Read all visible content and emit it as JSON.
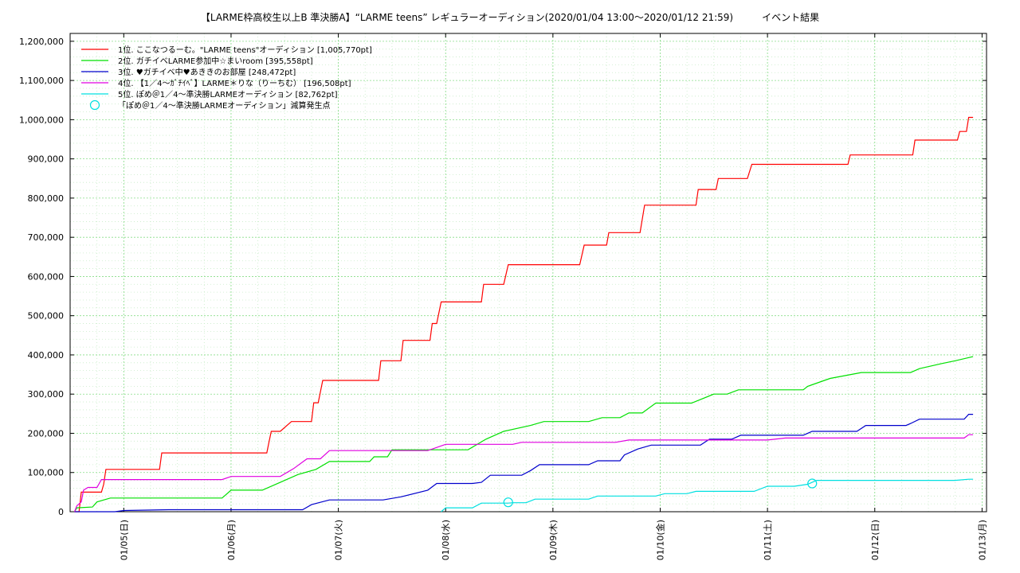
{
  "chart_data": {
    "type": "line",
    "title": "【LARME枠高校生以上B 準決勝A】“LARME teens” レギュラーオーディション(2020/01/04 13:00〜2020/01/12 21:59)　　　イベント結果",
    "xlabel": "",
    "ylabel": "",
    "x_range": [
      "2020-01-04 12:00",
      "2020-01-13 01:00"
    ],
    "ylim": [
      0,
      1220000
    ],
    "grid": true,
    "legend_position": "top-left",
    "y_ticks": [
      0,
      100000,
      200000,
      300000,
      400000,
      500000,
      600000,
      700000,
      800000,
      900000,
      1000000,
      1100000,
      1200000
    ],
    "y_tick_labels": [
      "0",
      "100,000",
      "200,000",
      "300,000",
      "400,000",
      "500,000",
      "600,000",
      "700,000",
      "800,000",
      "900,000",
      "1,000,000",
      "1,100,000",
      "1,200,000"
    ],
    "x_ticks": [
      "2020-01-05 00:00",
      "2020-01-06 00:00",
      "2020-01-07 00:00",
      "2020-01-08 00:00",
      "2020-01-09 00:00",
      "2020-01-10 00:00",
      "2020-01-11 00:00",
      "2020-01-12 00:00",
      "2020-01-13 00:00"
    ],
    "x_tick_labels": [
      "01/05(日)",
      "01/06(月)",
      "01/07(火)",
      "01/08(水)",
      "01/09(木)",
      "01/10(金)",
      "01/11(土)",
      "01/12(日)",
      "01/13(月)"
    ],
    "series": [
      {
        "name": "1位. ここなつるーむ。\"LARME teens\"オーディション [1,005,770pt]",
        "color": "#ff0000",
        "points": [
          [
            "2020-01-04 13:00",
            0
          ],
          [
            "2020-01-04 14:00",
            0
          ],
          [
            "2020-01-04 14:30",
            50000
          ],
          [
            "2020-01-04 19:00",
            50000
          ],
          [
            "2020-01-04 19:30",
            70000
          ],
          [
            "2020-01-04 20:00",
            108000
          ],
          [
            "2020-01-05 08:00",
            108000
          ],
          [
            "2020-01-05 08:30",
            150000
          ],
          [
            "2020-01-06 08:00",
            150000
          ],
          [
            "2020-01-06 08:30",
            178000
          ],
          [
            "2020-01-06 09:00",
            205000
          ],
          [
            "2020-01-06 11:00",
            205000
          ],
          [
            "2020-01-06 13:30",
            230000
          ],
          [
            "2020-01-06 18:00",
            230000
          ],
          [
            "2020-01-06 18:30",
            278000
          ],
          [
            "2020-01-06 19:30",
            278000
          ],
          [
            "2020-01-06 20:30",
            335000
          ],
          [
            "2020-01-07 09:00",
            335000
          ],
          [
            "2020-01-07 09:30",
            385000
          ],
          [
            "2020-01-07 14:00",
            385000
          ],
          [
            "2020-01-07 14:30",
            437000
          ],
          [
            "2020-01-07 20:30",
            437000
          ],
          [
            "2020-01-07 21:00",
            480000
          ],
          [
            "2020-01-07 22:00",
            480000
          ],
          [
            "2020-01-07 23:00",
            535000
          ],
          [
            "2020-01-08 08:00",
            535000
          ],
          [
            "2020-01-08 08:30",
            580000
          ],
          [
            "2020-01-08 13:00",
            580000
          ],
          [
            "2020-01-08 14:00",
            630000
          ],
          [
            "2020-01-09 06:00",
            630000
          ],
          [
            "2020-01-09 07:00",
            680000
          ],
          [
            "2020-01-09 12:00",
            680000
          ],
          [
            "2020-01-09 12:30",
            712000
          ],
          [
            "2020-01-09 19:30",
            712000
          ],
          [
            "2020-01-09 20:30",
            782000
          ],
          [
            "2020-01-10 08:00",
            782000
          ],
          [
            "2020-01-10 08:30",
            822000
          ],
          [
            "2020-01-10 12:30",
            822000
          ],
          [
            "2020-01-10 13:00",
            850000
          ],
          [
            "2020-01-10 19:30",
            850000
          ],
          [
            "2020-01-10 20:30",
            886000
          ],
          [
            "2020-01-11 18:00",
            886000
          ],
          [
            "2020-01-11 18:30",
            910000
          ],
          [
            "2020-01-12 08:30",
            910000
          ],
          [
            "2020-01-12 09:00",
            948000
          ],
          [
            "2020-01-12 18:30",
            948000
          ],
          [
            "2020-01-12 19:00",
            970000
          ],
          [
            "2020-01-12 20:30",
            970000
          ],
          [
            "2020-01-12 21:00",
            1005770
          ],
          [
            "2020-01-12 21:59",
            1005770
          ]
        ]
      },
      {
        "name": "2位. ガチイベLARME参加中☆まいroom [395,558pt]",
        "color": "#00e000",
        "points": [
          [
            "2020-01-04 13:00",
            0
          ],
          [
            "2020-01-04 13:30",
            10000
          ],
          [
            "2020-01-04 17:00",
            12000
          ],
          [
            "2020-01-04 18:00",
            25000
          ],
          [
            "2020-01-04 21:00",
            35000
          ],
          [
            "2020-01-05 22:00",
            35000
          ],
          [
            "2020-01-06 00:00",
            55000
          ],
          [
            "2020-01-06 07:00",
            55000
          ],
          [
            "2020-01-06 11:00",
            75000
          ],
          [
            "2020-01-06 15:00",
            95000
          ],
          [
            "2020-01-06 19:00",
            108000
          ],
          [
            "2020-01-06 22:00",
            128000
          ],
          [
            "2020-01-07 07:00",
            128000
          ],
          [
            "2020-01-07 08:00",
            140000
          ],
          [
            "2020-01-07 11:00",
            140000
          ],
          [
            "2020-01-07 12:00",
            158000
          ],
          [
            "2020-01-08 05:00",
            158000
          ],
          [
            "2020-01-08 09:00",
            185000
          ],
          [
            "2020-01-08 13:00",
            205000
          ],
          [
            "2020-01-08 19:00",
            220000
          ],
          [
            "2020-01-08 22:00",
            230000
          ],
          [
            "2020-01-09 08:00",
            230000
          ],
          [
            "2020-01-09 11:00",
            240000
          ],
          [
            "2020-01-09 15:00",
            240000
          ],
          [
            "2020-01-09 17:00",
            252000
          ],
          [
            "2020-01-09 20:00",
            252000
          ],
          [
            "2020-01-09 23:00",
            277000
          ],
          [
            "2020-01-10 07:00",
            277000
          ],
          [
            "2020-01-10 12:00",
            300000
          ],
          [
            "2020-01-10 15:00",
            300000
          ],
          [
            "2020-01-10 17:30",
            311000
          ],
          [
            "2020-01-11 08:00",
            311000
          ],
          [
            "2020-01-11 09:00",
            320000
          ],
          [
            "2020-01-11 14:00",
            340000
          ],
          [
            "2020-01-11 21:00",
            355000
          ],
          [
            "2020-01-12 08:00",
            355000
          ],
          [
            "2020-01-12 10:00",
            365000
          ],
          [
            "2020-01-12 15:00",
            378000
          ],
          [
            "2020-01-12 18:00",
            385000
          ],
          [
            "2020-01-12 21:59",
            395558
          ]
        ]
      },
      {
        "name": "3位. ♥ガチイベ中♥あききのお部屋 [248,472pt]",
        "color": "#0000cc",
        "points": [
          [
            "2020-01-04 13:00",
            0
          ],
          [
            "2020-01-04 22:00",
            0
          ],
          [
            "2020-01-05 00:00",
            3000
          ],
          [
            "2020-01-05 10:00",
            5000
          ],
          [
            "2020-01-06 16:00",
            5000
          ],
          [
            "2020-01-06 18:00",
            18000
          ],
          [
            "2020-01-06 22:00",
            30000
          ],
          [
            "2020-01-07 10:00",
            30000
          ],
          [
            "2020-01-07 14:00",
            38000
          ],
          [
            "2020-01-07 20:00",
            55000
          ],
          [
            "2020-01-07 22:00",
            72000
          ],
          [
            "2020-01-08 06:00",
            72000
          ],
          [
            "2020-01-08 08:00",
            75000
          ],
          [
            "2020-01-08 10:00",
            93000
          ],
          [
            "2020-01-08 17:00",
            93000
          ],
          [
            "2020-01-08 19:00",
            105000
          ],
          [
            "2020-01-08 21:00",
            120000
          ],
          [
            "2020-01-09 08:00",
            120000
          ],
          [
            "2020-01-09 10:00",
            130000
          ],
          [
            "2020-01-09 15:00",
            130000
          ],
          [
            "2020-01-09 16:00",
            145000
          ],
          [
            "2020-01-09 19:00",
            160000
          ],
          [
            "2020-01-09 22:00",
            170000
          ],
          [
            "2020-01-10 09:00",
            170000
          ],
          [
            "2020-01-10 11:00",
            185000
          ],
          [
            "2020-01-10 16:00",
            185000
          ],
          [
            "2020-01-10 18:00",
            195000
          ],
          [
            "2020-01-11 08:00",
            195000
          ],
          [
            "2020-01-11 10:00",
            205000
          ],
          [
            "2020-01-11 20:00",
            205000
          ],
          [
            "2020-01-11 22:00",
            220000
          ],
          [
            "2020-01-12 07:00",
            220000
          ],
          [
            "2020-01-12 08:00",
            225000
          ],
          [
            "2020-01-12 10:00",
            236000
          ],
          [
            "2020-01-12 20:00",
            236000
          ],
          [
            "2020-01-12 21:00",
            248472
          ],
          [
            "2020-01-12 21:59",
            248472
          ]
        ]
      },
      {
        "name": "4位. 【1／4〜ｶﾞﾁｲﾍﾞ】LARME＊りな（りーちむ） [196,508pt]",
        "color": "#e000e0",
        "points": [
          [
            "2020-01-04 13:00",
            0
          ],
          [
            "2020-01-04 13:30",
            15000
          ],
          [
            "2020-01-04 14:30",
            25000
          ],
          [
            "2020-01-04 15:00",
            55000
          ],
          [
            "2020-01-04 16:00",
            62000
          ],
          [
            "2020-01-04 18:00",
            62000
          ],
          [
            "2020-01-04 19:00",
            82000
          ],
          [
            "2020-01-05 22:00",
            82000
          ],
          [
            "2020-01-06 00:00",
            90000
          ],
          [
            "2020-01-06 11:00",
            90000
          ],
          [
            "2020-01-06 14:00",
            110000
          ],
          [
            "2020-01-06 17:00",
            135000
          ],
          [
            "2020-01-06 20:00",
            135000
          ],
          [
            "2020-01-06 22:00",
            156000
          ],
          [
            "2020-01-07 20:00",
            156000
          ],
          [
            "2020-01-08 00:00",
            172000
          ],
          [
            "2020-01-08 15:00",
            172000
          ],
          [
            "2020-01-08 17:00",
            177000
          ],
          [
            "2020-01-09 14:00",
            177000
          ],
          [
            "2020-01-09 17:00",
            183000
          ],
          [
            "2020-01-11 00:00",
            183000
          ],
          [
            "2020-01-11 04:00",
            188000
          ],
          [
            "2020-01-12 20:00",
            188000
          ],
          [
            "2020-01-12 21:00",
            196508
          ],
          [
            "2020-01-12 21:59",
            196508
          ]
        ]
      },
      {
        "name": "5位. ぽめ＠1／4〜準決勝LARMEオーディション [82,762pt]",
        "color": "#00e0e0",
        "points": [
          [
            "2020-01-07 23:00",
            0
          ],
          [
            "2020-01-08 00:00",
            10000
          ],
          [
            "2020-01-08 06:00",
            10000
          ],
          [
            "2020-01-08 08:00",
            22000
          ],
          [
            "2020-01-08 14:00",
            22000
          ],
          [
            "2020-01-08 15:00",
            23000
          ],
          [
            "2020-01-08 18:00",
            23000
          ],
          [
            "2020-01-08 20:00",
            32000
          ],
          [
            "2020-01-09 08:00",
            32000
          ],
          [
            "2020-01-09 10:00",
            40000
          ],
          [
            "2020-01-09 23:00",
            40000
          ],
          [
            "2020-01-10 01:00",
            46000
          ],
          [
            "2020-01-10 06:00",
            46000
          ],
          [
            "2020-01-10 08:00",
            52000
          ],
          [
            "2020-01-10 21:00",
            52000
          ],
          [
            "2020-01-11 00:00",
            65000
          ],
          [
            "2020-01-11 06:00",
            65000
          ],
          [
            "2020-01-11 09:00",
            70000
          ],
          [
            "2020-01-11 11:00",
            80000
          ],
          [
            "2020-01-12 18:00",
            80000
          ],
          [
            "2020-01-12 21:00",
            82762
          ],
          [
            "2020-01-12 21:59",
            82762
          ]
        ]
      }
    ],
    "markers": {
      "name": "「ぽめ＠1／4〜準決勝LARMEオーディション」減算発生点",
      "color": "#00e0e0",
      "points": [
        [
          "2020-01-08 14:00",
          24000
        ],
        [
          "2020-01-11 10:00",
          72000
        ]
      ]
    }
  }
}
